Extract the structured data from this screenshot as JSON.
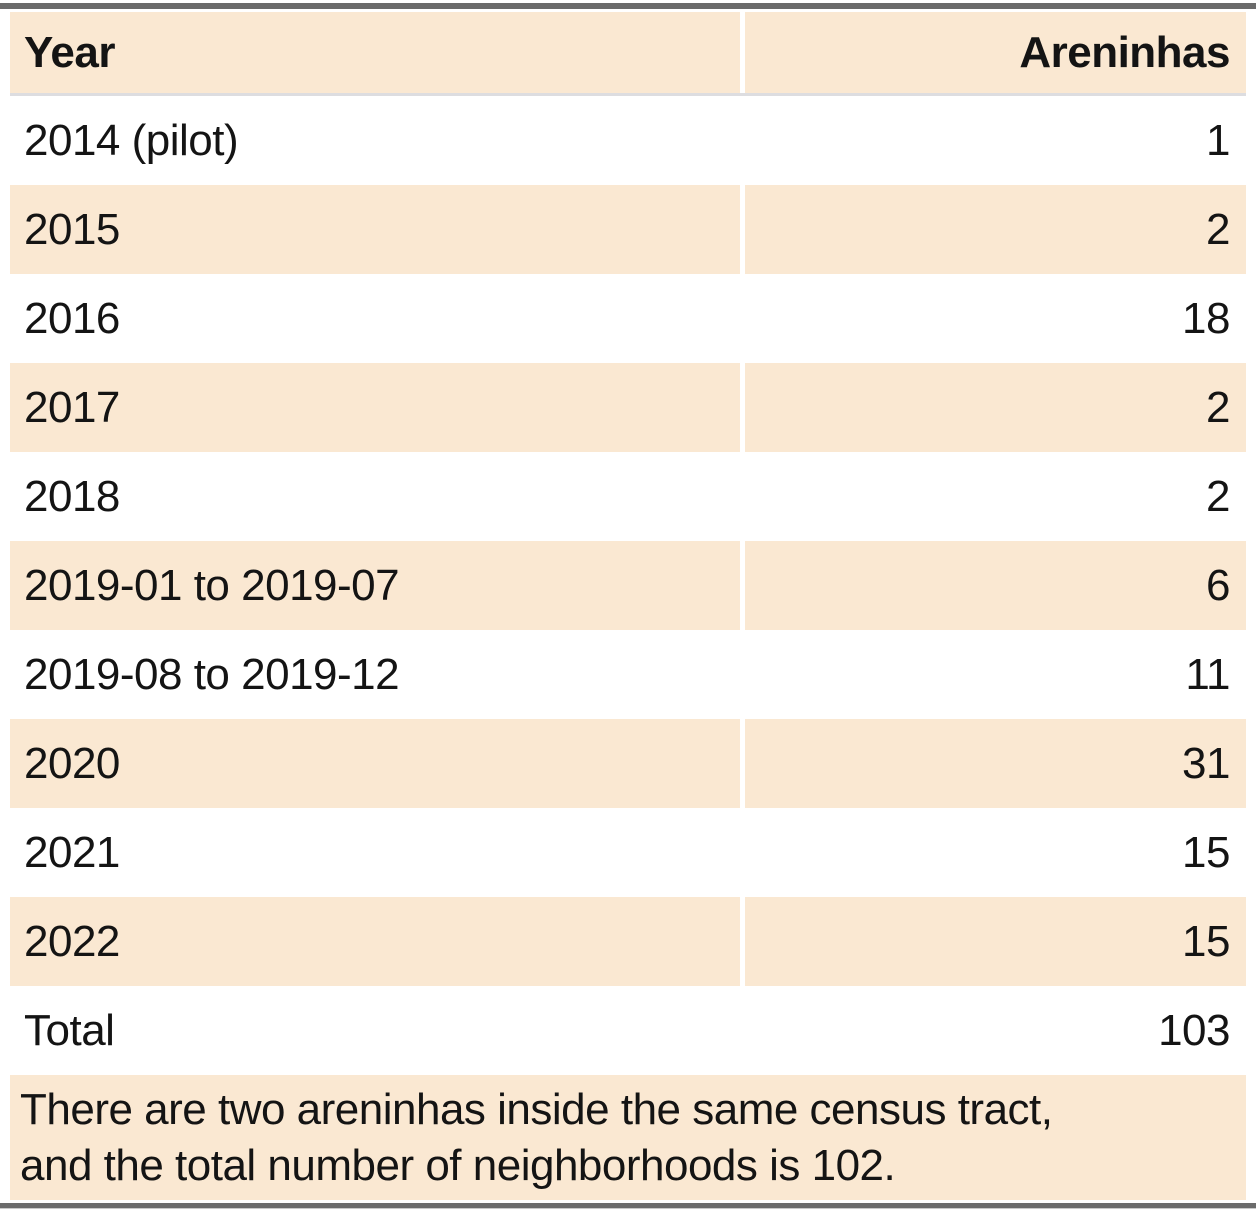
{
  "table": {
    "columns": [
      {
        "label": "Year",
        "align": "left"
      },
      {
        "label": "Areninhas",
        "align": "right"
      }
    ],
    "rows": [
      {
        "year": "2014 (pilot)",
        "areninhas": "1"
      },
      {
        "year": "2015",
        "areninhas": "2"
      },
      {
        "year": "2016",
        "areninhas": "18"
      },
      {
        "year": "2017",
        "areninhas": "2"
      },
      {
        "year": "2018",
        "areninhas": "2"
      },
      {
        "year": "2019-01 to 2019-07",
        "areninhas": "6"
      },
      {
        "year": "2019-08 to 2019-12",
        "areninhas": "11"
      },
      {
        "year": "2020",
        "areninhas": "31"
      },
      {
        "year": "2021",
        "areninhas": "15"
      },
      {
        "year": "2022",
        "areninhas": "15"
      },
      {
        "year": "Total",
        "areninhas": "103"
      }
    ],
    "footnote": {
      "lines": [
        "There are two areninhas inside the same census tract,",
        "and the total number of neighborhoods is 102."
      ]
    },
    "colors": {
      "stripe": "#fae8d2",
      "rule_dark": "#6b6b6b",
      "header_underline": "#dddde0",
      "text": "#141414"
    }
  },
  "chart_data": {
    "type": "table",
    "title": "",
    "columns": [
      "Year",
      "Areninhas"
    ],
    "rows": [
      [
        "2014 (pilot)",
        1
      ],
      [
        "2015",
        2
      ],
      [
        "2016",
        18
      ],
      [
        "2017",
        2
      ],
      [
        "2018",
        2
      ],
      [
        "2019-01 to 2019-07",
        6
      ],
      [
        "2019-08 to 2019-12",
        11
      ],
      [
        "2020",
        31
      ],
      [
        "2021",
        15
      ],
      [
        "2022",
        15
      ],
      [
        "Total",
        103
      ]
    ],
    "footnote": "There are two areninhas inside the same census tract, and the total number of neighborhoods is 102.",
    "layout_hints": {
      "striped": true,
      "stripe_starts_on_second_data_row": true,
      "value_column_align": "right",
      "top_bottom_rules": true
    }
  }
}
